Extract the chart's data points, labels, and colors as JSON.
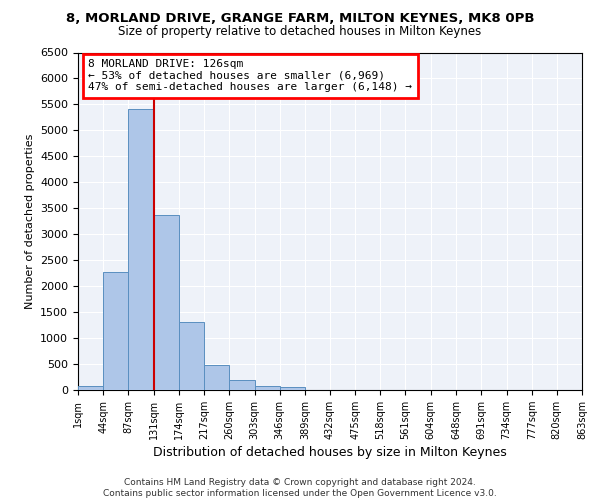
{
  "title1": "8, MORLAND DRIVE, GRANGE FARM, MILTON KEYNES, MK8 0PB",
  "title2": "Size of property relative to detached houses in Milton Keynes",
  "xlabel": "Distribution of detached houses by size in Milton Keynes",
  "ylabel": "Number of detached properties",
  "annotation_title": "8 MORLAND DRIVE: 126sqm",
  "annotation_line1": "← 53% of detached houses are smaller (6,969)",
  "annotation_line2": "47% of semi-detached houses are larger (6,148) →",
  "property_size_sqm": 126,
  "bin_edges": [
    1,
    44,
    87,
    131,
    174,
    217,
    260,
    303,
    346,
    389,
    432,
    475,
    518,
    561,
    604,
    648,
    691,
    734,
    777,
    820,
    863
  ],
  "bar_values": [
    75,
    2270,
    5420,
    3380,
    1310,
    480,
    185,
    75,
    50,
    0,
    0,
    0,
    0,
    0,
    0,
    0,
    0,
    0,
    0,
    0
  ],
  "bar_color": "#aec6e8",
  "bar_edge_color": "#5a8fc0",
  "vline_color": "#cc0000",
  "vline_x": 131,
  "ylim": [
    0,
    6500
  ],
  "yticks": [
    0,
    500,
    1000,
    1500,
    2000,
    2500,
    3000,
    3500,
    4000,
    4500,
    5000,
    5500,
    6000,
    6500
  ],
  "background_color": "#eef2f9",
  "footer1": "Contains HM Land Registry data © Crown copyright and database right 2024.",
  "footer2": "Contains public sector information licensed under the Open Government Licence v3.0."
}
